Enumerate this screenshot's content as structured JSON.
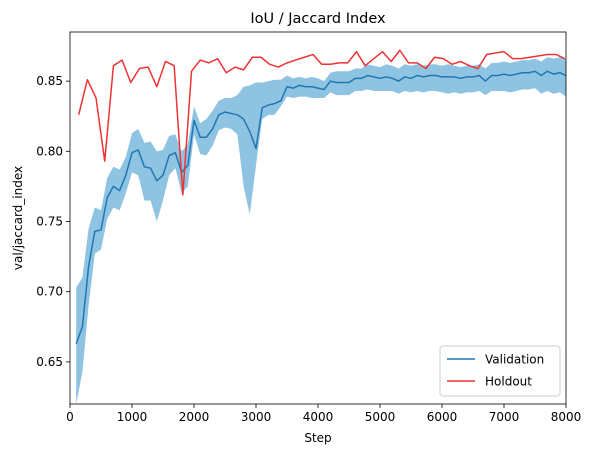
{
  "chart_data": {
    "type": "line",
    "title": "IoU / Jaccard Index",
    "xlabel": "Step",
    "ylabel": "val/jaccard_index",
    "xlim": [
      0,
      8000
    ],
    "ylim": [
      0.62,
      0.885
    ],
    "xticks": [
      0,
      1000,
      2000,
      3000,
      4000,
      5000,
      6000,
      7000,
      8000
    ],
    "yticks": [
      0.65,
      0.7,
      0.75,
      0.8,
      0.85
    ],
    "ytick_labels": [
      "0.65",
      "0.70",
      "0.75",
      "0.80",
      "0.85"
    ],
    "grid": false,
    "legend_position": "lower-right",
    "colors": {
      "validation": "#1f77b4",
      "validation_band": "#7ab8dd",
      "holdout": "#ee3333"
    },
    "series": [
      {
        "name": "Validation",
        "x": [
          100,
          200,
          300,
          400,
          500,
          600,
          700,
          800,
          900,
          1000,
          1100,
          1200,
          1300,
          1400,
          1500,
          1600,
          1700,
          1800,
          1900,
          2000,
          2100,
          2200,
          2300,
          2400,
          2500,
          2600,
          2700,
          2800,
          2900,
          3000,
          3100,
          3200,
          3300,
          3400,
          3500,
          3600,
          3700,
          3800,
          3900,
          4000,
          4100,
          4200,
          4300,
          4400,
          4500,
          4600,
          4700,
          4800,
          4900,
          5000,
          5100,
          5200,
          5300,
          5400,
          5500,
          5600,
          5700,
          5800,
          5900,
          6000,
          6100,
          6200,
          6300,
          6400,
          6500,
          6600,
          6700,
          6800,
          6900,
          7000,
          7100,
          7200,
          7300,
          7400,
          7500,
          7600,
          7700,
          7800,
          7900,
          8000
        ],
        "y": [
          0.663,
          0.675,
          0.718,
          0.743,
          0.744,
          0.767,
          0.775,
          0.772,
          0.783,
          0.799,
          0.801,
          0.789,
          0.788,
          0.779,
          0.783,
          0.797,
          0.799,
          0.785,
          0.79,
          0.822,
          0.81,
          0.81,
          0.816,
          0.826,
          0.828,
          0.827,
          0.826,
          0.823,
          0.814,
          0.802,
          0.831,
          0.833,
          0.834,
          0.836,
          0.846,
          0.845,
          0.847,
          0.846,
          0.846,
          0.845,
          0.844,
          0.85,
          0.849,
          0.849,
          0.849,
          0.852,
          0.852,
          0.854,
          0.853,
          0.852,
          0.853,
          0.852,
          0.85,
          0.853,
          0.852,
          0.854,
          0.853,
          0.854,
          0.854,
          0.853,
          0.853,
          0.853,
          0.852,
          0.853,
          0.853,
          0.854,
          0.85,
          0.854,
          0.854,
          0.855,
          0.854,
          0.855,
          0.856,
          0.856,
          0.857,
          0.854,
          0.857,
          0.855,
          0.856,
          0.854
        ],
        "y_lower": [
          0.62,
          0.643,
          0.69,
          0.727,
          0.73,
          0.752,
          0.76,
          0.758,
          0.77,
          0.785,
          0.783,
          0.765,
          0.765,
          0.75,
          0.765,
          0.783,
          0.788,
          0.77,
          0.775,
          0.812,
          0.798,
          0.797,
          0.804,
          0.815,
          0.817,
          0.816,
          0.812,
          0.775,
          0.755,
          0.79,
          0.823,
          0.826,
          0.826,
          0.832,
          0.839,
          0.838,
          0.839,
          0.839,
          0.838,
          0.838,
          0.838,
          0.842,
          0.84,
          0.84,
          0.84,
          0.843,
          0.843,
          0.844,
          0.843,
          0.843,
          0.843,
          0.843,
          0.841,
          0.843,
          0.842,
          0.843,
          0.842,
          0.843,
          0.843,
          0.842,
          0.841,
          0.842,
          0.841,
          0.842,
          0.842,
          0.843,
          0.84,
          0.843,
          0.843,
          0.843,
          0.842,
          0.843,
          0.844,
          0.844,
          0.845,
          0.841,
          0.843,
          0.841,
          0.842,
          0.839
        ],
        "y_upper": [
          0.703,
          0.71,
          0.745,
          0.76,
          0.758,
          0.781,
          0.789,
          0.787,
          0.796,
          0.813,
          0.816,
          0.806,
          0.807,
          0.8,
          0.801,
          0.811,
          0.812,
          0.8,
          0.805,
          0.832,
          0.82,
          0.823,
          0.829,
          0.836,
          0.838,
          0.838,
          0.84,
          0.846,
          0.847,
          0.849,
          0.849,
          0.85,
          0.851,
          0.851,
          0.854,
          0.852,
          0.853,
          0.852,
          0.853,
          0.852,
          0.85,
          0.856,
          0.857,
          0.857,
          0.857,
          0.859,
          0.859,
          0.862,
          0.861,
          0.86,
          0.862,
          0.861,
          0.859,
          0.862,
          0.861,
          0.862,
          0.861,
          0.862,
          0.862,
          0.861,
          0.862,
          0.861,
          0.86,
          0.861,
          0.861,
          0.862,
          0.859,
          0.863,
          0.863,
          0.864,
          0.863,
          0.864,
          0.865,
          0.865,
          0.866,
          0.864,
          0.867,
          0.866,
          0.867,
          0.866
        ]
      },
      {
        "name": "Holdout",
        "x": [
          140,
          280,
          420,
          560,
          700,
          840,
          980,
          1120,
          1260,
          1400,
          1540,
          1680,
          1820,
          1960,
          2100,
          2240,
          2380,
          2520,
          2660,
          2800,
          2940,
          3080,
          3220,
          3360,
          3500,
          3640,
          3780,
          3920,
          4060,
          4200,
          4340,
          4480,
          4620,
          4760,
          4900,
          5040,
          5180,
          5320,
          5460,
          5600,
          5740,
          5880,
          6020,
          6160,
          6300,
          6440,
          6580,
          6720,
          6860,
          7000,
          7140,
          7280,
          7420,
          7560,
          7700,
          7840,
          7980
        ],
        "y": [
          0.826,
          0.851,
          0.838,
          0.793,
          0.861,
          0.865,
          0.849,
          0.859,
          0.86,
          0.846,
          0.864,
          0.861,
          0.769,
          0.857,
          0.865,
          0.863,
          0.866,
          0.856,
          0.86,
          0.858,
          0.867,
          0.867,
          0.862,
          0.86,
          0.863,
          0.865,
          0.867,
          0.869,
          0.862,
          0.862,
          0.863,
          0.863,
          0.871,
          0.861,
          0.866,
          0.871,
          0.864,
          0.872,
          0.863,
          0.863,
          0.859,
          0.867,
          0.866,
          0.862,
          0.864,
          0.861,
          0.859,
          0.869,
          0.87,
          0.871,
          0.866,
          0.866,
          0.867,
          0.868,
          0.869,
          0.869,
          0.866
        ]
      }
    ]
  }
}
